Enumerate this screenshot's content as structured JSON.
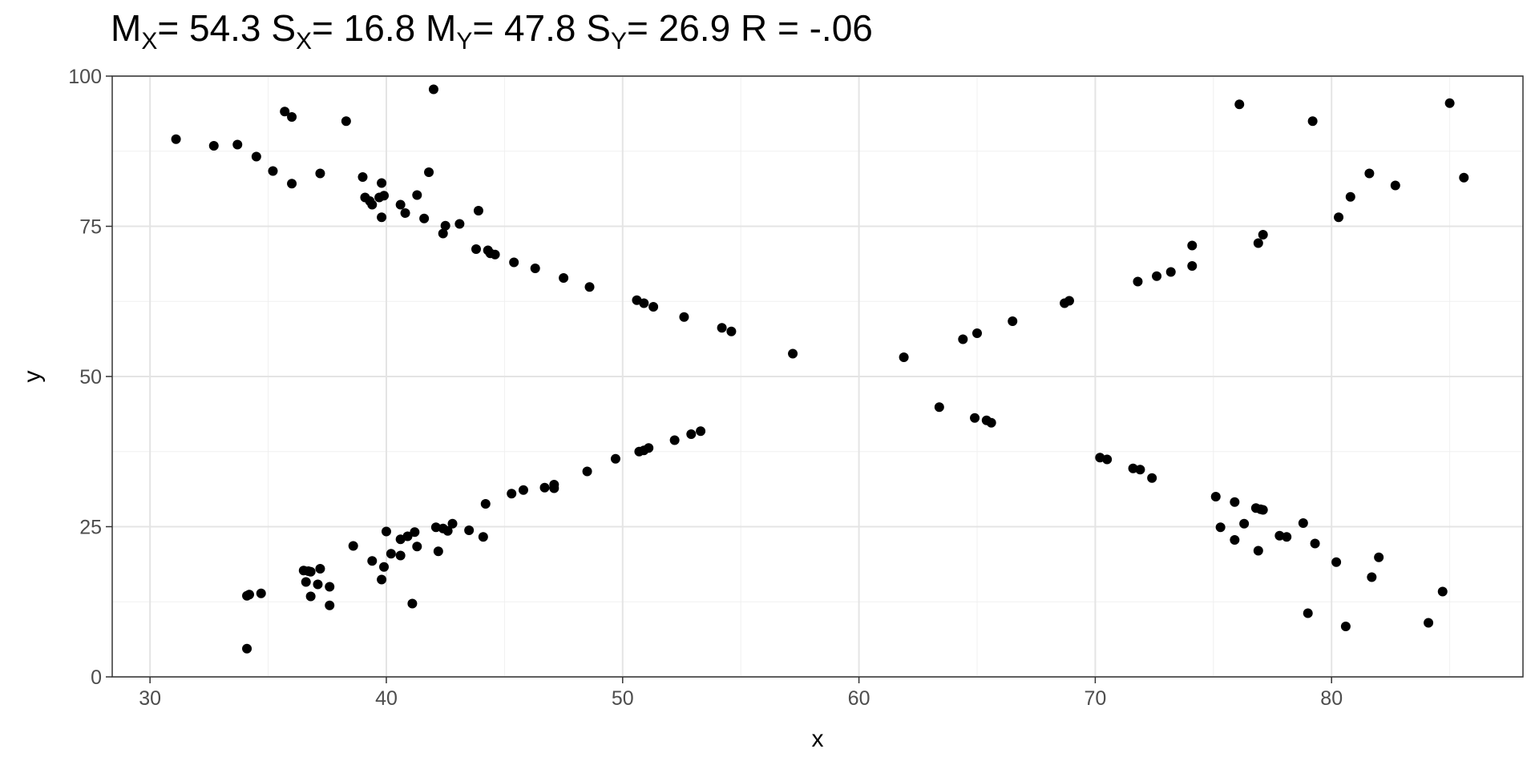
{
  "chart_data": {
    "type": "scatter",
    "title": {
      "mx_label": "M",
      "mx_sub": "X",
      "mx_value": "= 54.3",
      "sx_label": "S",
      "sx_sub": "X",
      "sx_value": "= 16.8",
      "my_label": "M",
      "my_sub": "Y",
      "my_value": "= 47.8",
      "sy_label": "S",
      "sy_sub": "Y",
      "sy_value": "= 26.9",
      "r_text": "R = -.06"
    },
    "xlabel": "x",
    "ylabel": "y",
    "xlim": [
      28.4,
      88.1
    ],
    "ylim": [
      0,
      100
    ],
    "x_ticks": [
      30,
      40,
      50,
      60,
      70,
      80
    ],
    "y_ticks": [
      0,
      25,
      50,
      75,
      100
    ],
    "grid": true,
    "points": [
      [
        31.1,
        89.5
      ],
      [
        32.7,
        88.4
      ],
      [
        33.7,
        88.6
      ],
      [
        34.5,
        86.6
      ],
      [
        35.2,
        84.2
      ],
      [
        35.7,
        94.1
      ],
      [
        36.0,
        93.2
      ],
      [
        36.0,
        82.1
      ],
      [
        37.2,
        83.8
      ],
      [
        38.3,
        92.5
      ],
      [
        39.0,
        83.2
      ],
      [
        39.1,
        79.8
      ],
      [
        39.3,
        79.2
      ],
      [
        39.4,
        78.6
      ],
      [
        39.7,
        79.8
      ],
      [
        39.8,
        82.2
      ],
      [
        39.9,
        80.1
      ],
      [
        39.8,
        76.5
      ],
      [
        40.6,
        78.6
      ],
      [
        40.8,
        77.2
      ],
      [
        41.3,
        80.2
      ],
      [
        41.6,
        76.3
      ],
      [
        41.8,
        84.0
      ],
      [
        42.0,
        97.8
      ],
      [
        42.4,
        73.8
      ],
      [
        42.5,
        75.1
      ],
      [
        43.1,
        75.4
      ],
      [
        43.8,
        71.2
      ],
      [
        43.9,
        77.6
      ],
      [
        44.3,
        71.0
      ],
      [
        44.4,
        70.5
      ],
      [
        44.6,
        70.3
      ],
      [
        45.4,
        69.0
      ],
      [
        46.3,
        68.0
      ],
      [
        47.5,
        66.4
      ],
      [
        48.6,
        64.9
      ],
      [
        50.6,
        62.7
      ],
      [
        50.9,
        62.2
      ],
      [
        51.3,
        61.6
      ],
      [
        52.6,
        59.9
      ],
      [
        54.2,
        58.1
      ],
      [
        54.6,
        57.5
      ],
      [
        57.2,
        53.8
      ],
      [
        61.9,
        53.2
      ],
      [
        64.4,
        56.2
      ],
      [
        65.0,
        57.2
      ],
      [
        66.5,
        59.2
      ],
      [
        68.7,
        62.2
      ],
      [
        68.9,
        62.6
      ],
      [
        71.8,
        65.8
      ],
      [
        72.6,
        66.7
      ],
      [
        73.2,
        67.4
      ],
      [
        74.1,
        68.4
      ],
      [
        74.1,
        71.8
      ],
      [
        76.1,
        95.3
      ],
      [
        76.9,
        72.2
      ],
      [
        77.1,
        73.6
      ],
      [
        79.2,
        92.5
      ],
      [
        80.3,
        76.5
      ],
      [
        80.8,
        79.9
      ],
      [
        81.6,
        83.8
      ],
      [
        82.7,
        81.8
      ],
      [
        85.0,
        95.5
      ],
      [
        85.6,
        83.1
      ],
      [
        34.1,
        4.7
      ],
      [
        34.1,
        13.5
      ],
      [
        34.2,
        13.7
      ],
      [
        34.7,
        13.9
      ],
      [
        36.5,
        17.7
      ],
      [
        36.6,
        15.8
      ],
      [
        36.7,
        17.6
      ],
      [
        36.8,
        13.4
      ],
      [
        36.8,
        17.5
      ],
      [
        37.1,
        15.4
      ],
      [
        37.2,
        18.0
      ],
      [
        37.6,
        11.9
      ],
      [
        37.6,
        15.0
      ],
      [
        38.6,
        21.8
      ],
      [
        39.4,
        19.3
      ],
      [
        39.8,
        16.2
      ],
      [
        39.9,
        18.3
      ],
      [
        40.0,
        24.2
      ],
      [
        40.2,
        20.5
      ],
      [
        40.6,
        22.9
      ],
      [
        40.6,
        20.2
      ],
      [
        40.9,
        23.4
      ],
      [
        41.1,
        12.2
      ],
      [
        41.2,
        24.1
      ],
      [
        41.3,
        21.7
      ],
      [
        42.1,
        24.9
      ],
      [
        42.2,
        20.9
      ],
      [
        42.4,
        24.7
      ],
      [
        42.6,
        24.3
      ],
      [
        42.8,
        25.5
      ],
      [
        43.5,
        24.4
      ],
      [
        44.1,
        23.3
      ],
      [
        44.2,
        28.8
      ],
      [
        45.3,
        30.5
      ],
      [
        45.8,
        31.1
      ],
      [
        46.7,
        31.5
      ],
      [
        47.1,
        31.4
      ],
      [
        47.1,
        32.0
      ],
      [
        48.5,
        34.2
      ],
      [
        49.7,
        36.3
      ],
      [
        50.7,
        37.5
      ],
      [
        50.9,
        37.7
      ],
      [
        51.1,
        38.1
      ],
      [
        52.2,
        39.4
      ],
      [
        52.9,
        40.4
      ],
      [
        53.3,
        40.9
      ],
      [
        63.4,
        44.9
      ],
      [
        64.9,
        43.1
      ],
      [
        65.4,
        42.7
      ],
      [
        65.6,
        42.3
      ],
      [
        70.2,
        36.5
      ],
      [
        70.5,
        36.2
      ],
      [
        71.6,
        34.7
      ],
      [
        71.9,
        34.5
      ],
      [
        72.4,
        33.1
      ],
      [
        75.1,
        30.0
      ],
      [
        75.3,
        24.9
      ],
      [
        75.9,
        22.8
      ],
      [
        75.9,
        29.1
      ],
      [
        76.3,
        25.5
      ],
      [
        76.8,
        28.1
      ],
      [
        76.9,
        21.0
      ],
      [
        77.0,
        27.9
      ],
      [
        77.1,
        27.8
      ],
      [
        77.8,
        23.5
      ],
      [
        78.1,
        23.3
      ],
      [
        78.8,
        25.6
      ],
      [
        79.0,
        10.6
      ],
      [
        79.3,
        22.2
      ],
      [
        80.2,
        19.1
      ],
      [
        80.6,
        8.4
      ],
      [
        81.7,
        16.6
      ],
      [
        82.0,
        19.9
      ],
      [
        84.1,
        9.0
      ],
      [
        84.7,
        14.2
      ]
    ]
  }
}
